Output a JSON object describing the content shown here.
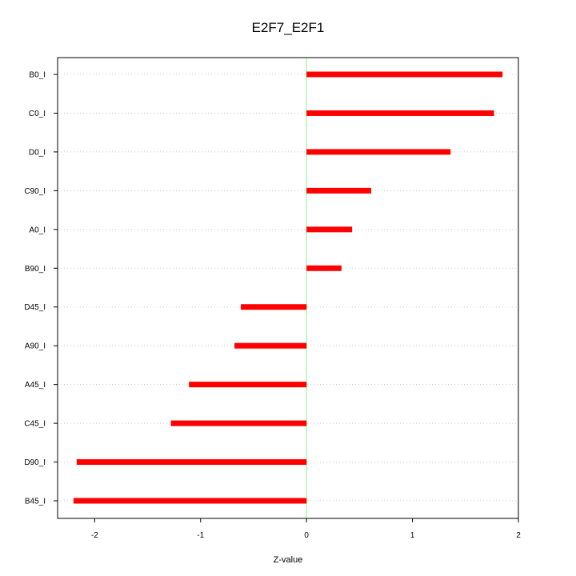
{
  "chart_data": {
    "type": "bar",
    "orientation": "horizontal",
    "title": "E2F7_E2F1",
    "xlabel": "Z-value",
    "ylabel": "",
    "xlim": [
      -2.35,
      2.0
    ],
    "x_ticks": [
      "-2",
      "-1",
      "0",
      "1",
      "2"
    ],
    "categories": [
      "B0_I",
      "C0_I",
      "D0_I",
      "C90_I",
      "A0_I",
      "B90_I",
      "D45_I",
      "A90_I",
      "A45_I",
      "C45_I",
      "D90_I",
      "B45_I"
    ],
    "values": [
      1.85,
      1.77,
      1.36,
      0.61,
      0.43,
      0.33,
      -0.62,
      -0.68,
      -1.11,
      -1.28,
      -2.17,
      -2.2
    ],
    "grid": "horizontal dotted",
    "reference_line": 0,
    "colors": {
      "bar": "#ff0000",
      "zero_line": "#90ee90",
      "grid": "#c8c8c8"
    }
  }
}
